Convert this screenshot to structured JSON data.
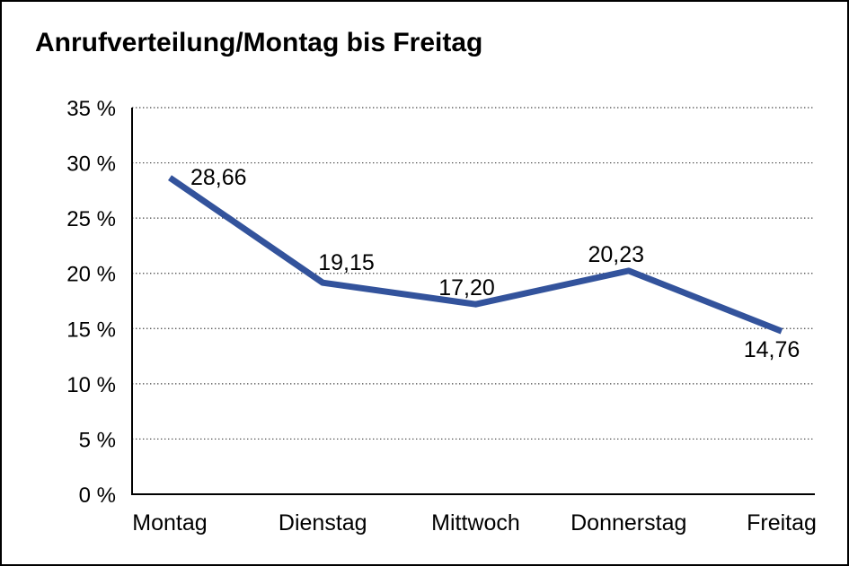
{
  "page": {
    "title": "Anrufverteilung/Montag bis Freitag"
  },
  "chart_data": {
    "type": "line",
    "title": "Anrufverteilung/Montag bis Freitag",
    "categories": [
      "Montag",
      "Dienstag",
      "Mittwoch",
      "Donnerstag",
      "Freitag"
    ],
    "series": [
      {
        "name": "Anrufverteilung",
        "values": [
          28.66,
          19.15,
          17.2,
          20.23,
          14.76
        ],
        "color": "#33539C"
      }
    ],
    "value_labels": [
      "28,66",
      "19,15",
      "17,20",
      "20,23",
      "14,76"
    ],
    "xlabel": "",
    "ylabel": "",
    "ylim": [
      0,
      35
    ],
    "ytick_step": 5,
    "ytick_labels": [
      "0 %",
      "5 %",
      "10 %",
      "15 %",
      "20 %",
      "25 %",
      "30 %",
      "35 %"
    ],
    "grid": "horizontal-dotted",
    "legend": "none",
    "label_offsets": [
      [
        23,
        8,
        "start"
      ],
      [
        -5,
        -14,
        "start"
      ],
      [
        -10,
        -10,
        "middle"
      ],
      [
        -14,
        -10,
        "middle"
      ],
      [
        -11,
        29,
        "middle"
      ]
    ]
  },
  "colors": {
    "line": "#33539C",
    "axis": "#000000",
    "gridline": "#444444",
    "text": "#000000",
    "background": "#ffffff",
    "frame_border": "#000000"
  }
}
